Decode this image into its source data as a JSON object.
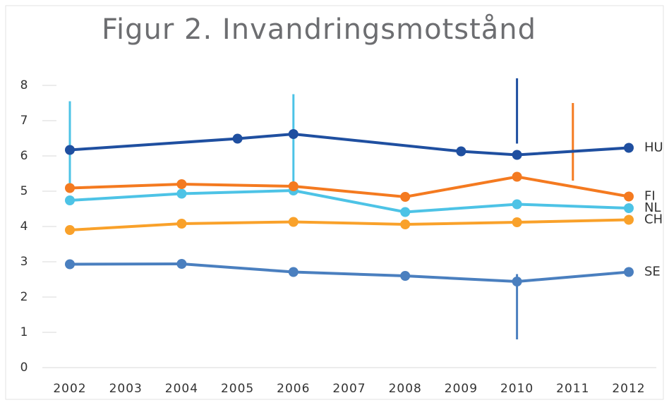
{
  "chart_data": {
    "type": "line",
    "title": "Figur 2. Invandringsmotstånd",
    "xlim": [
      2002,
      2012
    ],
    "xticks": [
      2002,
      2003,
      2004,
      2005,
      2006,
      2007,
      2008,
      2009,
      2010,
      2011,
      2012
    ],
    "ylim": [
      0,
      8
    ],
    "yticks": [
      0,
      1,
      2,
      3,
      4,
      5,
      6,
      7,
      8
    ],
    "series": [
      {
        "name": "HU",
        "color": "#1f4fa0",
        "x": [
          2002,
          2005,
          2006,
          2009,
          2010,
          2012
        ],
        "values": [
          6.17,
          6.49,
          6.62,
          6.13,
          6.03,
          6.23
        ]
      },
      {
        "name": "FI",
        "color": "#f47a20",
        "x": [
          2002,
          2004,
          2006,
          2008,
          2010,
          2012
        ],
        "values": [
          5.09,
          5.2,
          5.14,
          4.84,
          5.41,
          4.85
        ]
      },
      {
        "name": "NL",
        "color": "#4dc3e6",
        "x": [
          2002,
          2004,
          2006,
          2008,
          2010,
          2012
        ],
        "values": [
          4.74,
          4.93,
          5.02,
          4.41,
          4.63,
          4.52
        ]
      },
      {
        "name": "CH",
        "color": "#f9a12a",
        "x": [
          2002,
          2004,
          2006,
          2008,
          2010,
          2012
        ],
        "values": [
          3.9,
          4.08,
          4.13,
          4.06,
          4.12,
          4.19
        ]
      },
      {
        "name": "SE",
        "color": "#4a7fbf",
        "x": [
          2002,
          2004,
          2006,
          2008,
          2010,
          2012
        ],
        "values": [
          2.93,
          2.94,
          2.71,
          2.6,
          2.44,
          2.71
        ]
      }
    ],
    "vertical_lines": [
      {
        "x": 2002,
        "y": [
          5.1,
          7.55
        ],
        "color": "#4dc3e6"
      },
      {
        "x": 2006,
        "y": [
          5.0,
          7.75
        ],
        "color": "#4dc3e6"
      },
      {
        "x": 2010,
        "y": [
          6.35,
          8.2
        ],
        "color": "#1f4fa0"
      },
      {
        "x": 2011,
        "y": [
          5.3,
          7.5
        ],
        "color": "#f47a20"
      },
      {
        "x": 2010,
        "y": [
          0.8,
          2.65
        ],
        "color": "#4a7fbf"
      }
    ]
  }
}
